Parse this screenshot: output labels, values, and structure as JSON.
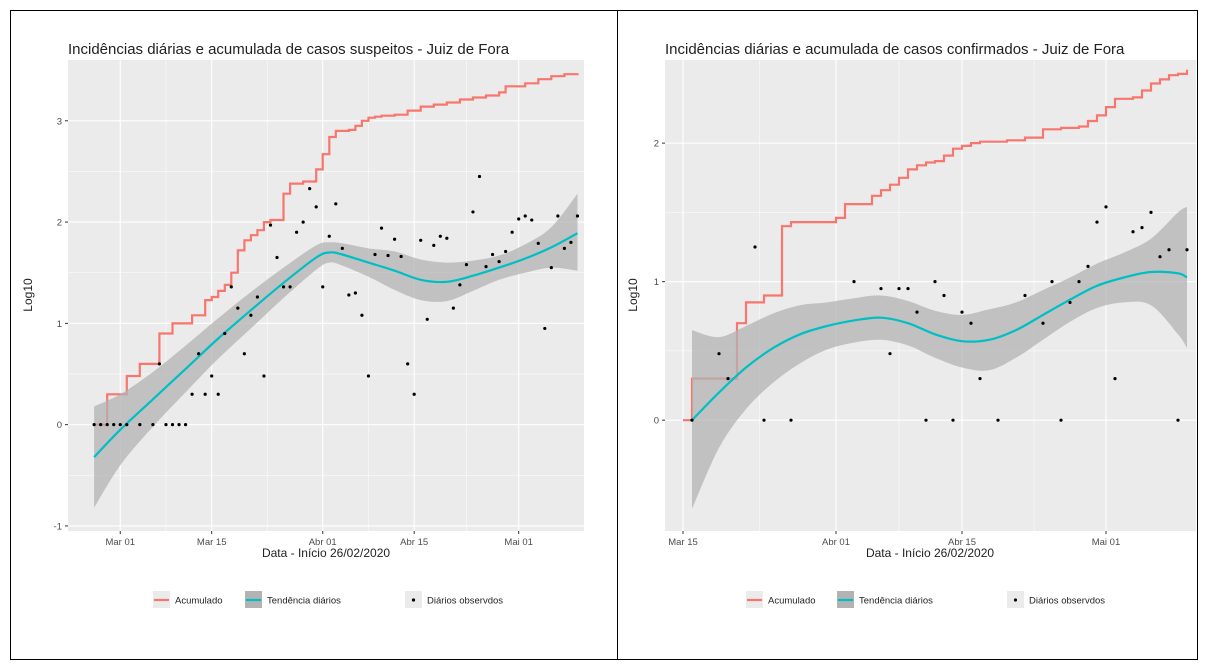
{
  "colors": {
    "acumulado": "#f8766d",
    "tendencia": "#00bfc4",
    "observados": "#000000",
    "panel": "#ebebeb",
    "ribbon": "#b3b3b3"
  },
  "chart_data": [
    {
      "type": "line",
      "title": "Incidências diárias e acumulada de casos suspeitos - Juiz de Fora",
      "xlabel": "Data - Início 26/02/2020",
      "ylabel": "Log10",
      "x_is_date": true,
      "xlim": [
        "2020-02-22",
        "2020-05-11"
      ],
      "ylim": [
        -1.05,
        3.6
      ],
      "x_ticks": [
        "2020-03-01",
        "2020-03-15",
        "2020-04-01",
        "2020-04-15",
        "2020-05-01"
      ],
      "x_tick_labels": [
        "Mar 01",
        "Mar 15",
        "Abr 01",
        "Abr 15",
        "Mai 01"
      ],
      "y_ticks": [
        -1,
        0,
        1,
        2,
        3
      ],
      "y_tick_labels": [
        "-1",
        "0",
        "1",
        "2",
        "3"
      ],
      "legend": {
        "position": "bottom",
        "entries": [
          "Acumulado",
          "Tendência diários",
          "Diários observdos"
        ]
      },
      "series": [
        {
          "name": "Acumulado",
          "kind": "step",
          "x": [
            "2020-02-26",
            "2020-02-27",
            "2020-02-28",
            "2020-02-29",
            "2020-03-02",
            "2020-03-03",
            "2020-03-04",
            "2020-03-05",
            "2020-03-07",
            "2020-03-08",
            "2020-03-09",
            "2020-03-10",
            "2020-03-12",
            "2020-03-14",
            "2020-03-15",
            "2020-03-16",
            "2020-03-17",
            "2020-03-18",
            "2020-03-19",
            "2020-03-20",
            "2020-03-21",
            "2020-03-22",
            "2020-03-23",
            "2020-03-24",
            "2020-03-25",
            "2020-03-26",
            "2020-03-27",
            "2020-03-28",
            "2020-03-29",
            "2020-03-31",
            "2020-04-01",
            "2020-04-02",
            "2020-04-03",
            "2020-04-04",
            "2020-04-05",
            "2020-04-06",
            "2020-04-07",
            "2020-04-08",
            "2020-04-09",
            "2020-04-10",
            "2020-04-12",
            "2020-04-14",
            "2020-04-16",
            "2020-04-18",
            "2020-04-20",
            "2020-04-22",
            "2020-04-24",
            "2020-04-26",
            "2020-04-28",
            "2020-04-29",
            "2020-05-02",
            "2020-05-04",
            "2020-05-06",
            "2020-05-08",
            "2020-05-10"
          ],
          "y": [
            0,
            0,
            0.3,
            0.3,
            0.48,
            0.48,
            0.6,
            0.6,
            0.9,
            0.9,
            1.0,
            1.0,
            1.08,
            1.23,
            1.26,
            1.32,
            1.38,
            1.5,
            1.72,
            1.82,
            1.87,
            1.92,
            2.0,
            2.02,
            2.02,
            2.28,
            2.38,
            2.38,
            2.4,
            2.52,
            2.67,
            2.84,
            2.9,
            2.9,
            2.91,
            2.95,
            3.0,
            3.03,
            3.04,
            3.05,
            3.06,
            3.1,
            3.14,
            3.16,
            3.18,
            3.21,
            3.23,
            3.25,
            3.28,
            3.34,
            3.37,
            3.41,
            3.44,
            3.46,
            3.47
          ]
        },
        {
          "name": "Tendência diários",
          "kind": "smooth",
          "x": [
            "2020-02-26",
            "2020-03-01",
            "2020-03-06",
            "2020-03-11",
            "2020-03-16",
            "2020-03-21",
            "2020-03-26",
            "2020-03-31",
            "2020-04-02",
            "2020-04-04",
            "2020-04-08",
            "2020-04-12",
            "2020-04-16",
            "2020-04-20",
            "2020-04-24",
            "2020-04-28",
            "2020-05-02",
            "2020-05-06",
            "2020-05-10"
          ],
          "y": [
            -0.32,
            -0.05,
            0.25,
            0.55,
            0.85,
            1.13,
            1.4,
            1.65,
            1.7,
            1.68,
            1.6,
            1.52,
            1.43,
            1.41,
            1.47,
            1.55,
            1.64,
            1.75,
            1.89
          ],
          "lower": [
            -0.82,
            -0.4,
            -0.02,
            0.32,
            0.65,
            0.95,
            1.25,
            1.53,
            1.6,
            1.57,
            1.46,
            1.33,
            1.23,
            1.22,
            1.32,
            1.43,
            1.5,
            1.55,
            1.52
          ],
          "upper": [
            0.18,
            0.3,
            0.52,
            0.78,
            1.05,
            1.31,
            1.55,
            1.77,
            1.8,
            1.79,
            1.74,
            1.71,
            1.63,
            1.6,
            1.62,
            1.67,
            1.78,
            1.95,
            2.28
          ]
        },
        {
          "name": "Diários observdos",
          "kind": "points",
          "x": [
            "2020-02-26",
            "2020-02-27",
            "2020-02-28",
            "2020-02-29",
            "2020-03-01",
            "2020-03-02",
            "2020-03-04",
            "2020-03-06",
            "2020-03-07",
            "2020-03-08",
            "2020-03-09",
            "2020-03-10",
            "2020-03-11",
            "2020-03-12",
            "2020-03-13",
            "2020-03-14",
            "2020-03-15",
            "2020-03-16",
            "2020-03-17",
            "2020-03-18",
            "2020-03-19",
            "2020-03-20",
            "2020-03-21",
            "2020-03-22",
            "2020-03-23",
            "2020-03-24",
            "2020-03-25",
            "2020-03-26",
            "2020-03-27",
            "2020-03-28",
            "2020-03-29",
            "2020-03-30",
            "2020-03-31",
            "2020-04-01",
            "2020-04-02",
            "2020-04-03",
            "2020-04-04",
            "2020-04-05",
            "2020-04-06",
            "2020-04-07",
            "2020-04-08",
            "2020-04-09",
            "2020-04-10",
            "2020-04-11",
            "2020-04-12",
            "2020-04-13",
            "2020-04-14",
            "2020-04-15",
            "2020-04-16",
            "2020-04-17",
            "2020-04-18",
            "2020-04-19",
            "2020-04-20",
            "2020-04-21",
            "2020-04-22",
            "2020-04-23",
            "2020-04-24",
            "2020-04-25",
            "2020-04-26",
            "2020-04-27",
            "2020-04-28",
            "2020-04-29",
            "2020-04-30",
            "2020-05-01",
            "2020-05-02",
            "2020-05-03",
            "2020-05-04",
            "2020-05-05",
            "2020-05-06",
            "2020-05-07",
            "2020-05-08",
            "2020-05-09",
            "2020-05-10"
          ],
          "y": [
            0,
            0,
            0,
            0,
            0,
            0,
            0,
            0,
            0.6,
            0,
            0,
            0,
            0,
            0.3,
            0.7,
            0.3,
            0.48,
            0.3,
            0.9,
            1.36,
            1.15,
            0.7,
            1.08,
            1.26,
            0.48,
            1.97,
            1.65,
            1.36,
            1.36,
            1.9,
            2.0,
            2.33,
            2.15,
            1.36,
            1.86,
            2.18,
            1.74,
            1.28,
            1.3,
            1.08,
            0.48,
            1.68,
            1.94,
            1.67,
            1.83,
            1.66,
            0.6,
            0.3,
            1.82,
            1.04,
            1.77,
            1.86,
            1.84,
            1.15,
            1.38,
            1.58,
            2.1,
            2.45,
            1.56,
            1.68,
            1.61,
            1.71,
            1.9,
            2.03,
            2.06,
            2.02,
            1.79,
            0.95,
            1.55,
            2.06,
            1.74,
            1.8,
            2.06
          ]
        }
      ]
    },
    {
      "type": "line",
      "title": "Incidências diárias e acumulada de casos confirmados - Juiz de Fora",
      "xlabel": "Data - Início 26/02/2020",
      "ylabel": "Log10",
      "x_is_date": true,
      "xlim": [
        "2020-03-13",
        "2020-05-11"
      ],
      "ylim": [
        -0.8,
        2.6
      ],
      "x_ticks": [
        "2020-03-15",
        "2020-04-01",
        "2020-04-15",
        "2020-05-01"
      ],
      "x_tick_labels": [
        "Mar 15",
        "Abr 01",
        "Abr 15",
        "Mai 01"
      ],
      "y_ticks": [
        0,
        1,
        2
      ],
      "y_tick_labels": [
        "0",
        "1",
        "2"
      ],
      "legend": {
        "position": "bottom",
        "entries": [
          "Acumulado",
          "Tendência diários",
          "Diários observdos"
        ]
      },
      "series": [
        {
          "name": "Acumulado",
          "kind": "step",
          "x": [
            "2020-03-15",
            "2020-03-16",
            "2020-03-20",
            "2020-03-21",
            "2020-03-22",
            "2020-03-23",
            "2020-03-24",
            "2020-03-25",
            "2020-03-26",
            "2020-03-27",
            "2020-03-28",
            "2020-03-29",
            "2020-04-01",
            "2020-04-02",
            "2020-04-03",
            "2020-04-04",
            "2020-04-05",
            "2020-04-06",
            "2020-04-07",
            "2020-04-08",
            "2020-04-09",
            "2020-04-10",
            "2020-04-11",
            "2020-04-12",
            "2020-04-13",
            "2020-04-14",
            "2020-04-15",
            "2020-04-16",
            "2020-04-17",
            "2020-04-18",
            "2020-04-20",
            "2020-04-22",
            "2020-04-24",
            "2020-04-26",
            "2020-04-28",
            "2020-04-29",
            "2020-04-30",
            "2020-05-01",
            "2020-05-02",
            "2020-05-03",
            "2020-05-04",
            "2020-05-05",
            "2020-05-06",
            "2020-05-07",
            "2020-05-08",
            "2020-05-09",
            "2020-05-10"
          ],
          "y": [
            0.0,
            0.3,
            0.3,
            0.7,
            0.85,
            0.85,
            0.9,
            0.9,
            1.4,
            1.43,
            1.43,
            1.43,
            1.46,
            1.56,
            1.56,
            1.56,
            1.62,
            1.66,
            1.7,
            1.75,
            1.81,
            1.84,
            1.86,
            1.87,
            1.91,
            1.96,
            1.98,
            2.0,
            2.01,
            2.01,
            2.02,
            2.04,
            2.1,
            2.11,
            2.12,
            2.16,
            2.2,
            2.26,
            2.32,
            2.32,
            2.33,
            2.38,
            2.43,
            2.46,
            2.49,
            2.5,
            2.53
          ]
        },
        {
          "name": "Tendência diários",
          "kind": "smooth",
          "x": [
            "2020-03-16",
            "2020-03-19",
            "2020-03-22",
            "2020-03-25",
            "2020-03-28",
            "2020-03-31",
            "2020-04-03",
            "2020-04-06",
            "2020-04-09",
            "2020-04-12",
            "2020-04-15",
            "2020-04-18",
            "2020-04-21",
            "2020-04-24",
            "2020-04-27",
            "2020-04-30",
            "2020-05-03",
            "2020-05-06",
            "2020-05-09",
            "2020-05-10"
          ],
          "y": [
            0.0,
            0.2,
            0.38,
            0.52,
            0.62,
            0.68,
            0.72,
            0.74,
            0.7,
            0.62,
            0.57,
            0.58,
            0.65,
            0.76,
            0.87,
            0.97,
            1.03,
            1.07,
            1.06,
            1.03
          ],
          "lower": [
            -0.64,
            -0.2,
            0.08,
            0.27,
            0.41,
            0.51,
            0.56,
            0.58,
            0.54,
            0.45,
            0.38,
            0.36,
            0.45,
            0.58,
            0.71,
            0.81,
            0.85,
            0.83,
            0.62,
            0.52
          ],
          "upper": [
            0.65,
            0.6,
            0.68,
            0.77,
            0.83,
            0.85,
            0.88,
            0.9,
            0.86,
            0.79,
            0.76,
            0.8,
            0.85,
            0.94,
            1.03,
            1.13,
            1.21,
            1.31,
            1.5,
            1.54
          ]
        },
        {
          "name": "Diários observdos",
          "kind": "points",
          "x": [
            "2020-03-16",
            "2020-03-19",
            "2020-03-20",
            "2020-03-23",
            "2020-03-24",
            "2020-03-27",
            "2020-04-03",
            "2020-04-06",
            "2020-04-07",
            "2020-04-08",
            "2020-04-09",
            "2020-04-10",
            "2020-04-11",
            "2020-04-12",
            "2020-04-13",
            "2020-04-14",
            "2020-04-15",
            "2020-04-16",
            "2020-04-17",
            "2020-04-19",
            "2020-04-22",
            "2020-04-24",
            "2020-04-25",
            "2020-04-26",
            "2020-04-27",
            "2020-04-28",
            "2020-04-29",
            "2020-04-30",
            "2020-05-01",
            "2020-05-02",
            "2020-05-04",
            "2020-05-05",
            "2020-05-06",
            "2020-05-07",
            "2020-05-08",
            "2020-05-09",
            "2020-05-10"
          ],
          "y": [
            0,
            0.48,
            0.3,
            1.25,
            0,
            0,
            1.0,
            0.95,
            0.48,
            0.95,
            0.95,
            0.78,
            0,
            1.0,
            0.9,
            0,
            0.78,
            0.7,
            0.3,
            0,
            0.9,
            0.7,
            1.0,
            0,
            0.85,
            1.0,
            1.11,
            1.43,
            1.54,
            0.3,
            1.36,
            1.39,
            1.5,
            1.18,
            1.23,
            0,
            1.23
          ]
        }
      ]
    }
  ]
}
